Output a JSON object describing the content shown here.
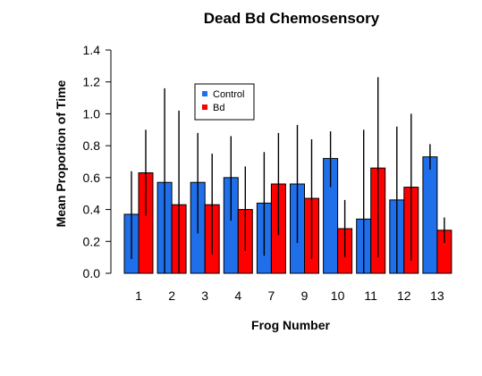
{
  "chart_data": {
    "type": "bar",
    "title": "Dead Bd Chemosensory",
    "xlabel": "Frog Number",
    "ylabel": "Mean Proportion of Time",
    "ylim": [
      0,
      1.4
    ],
    "yticks": [
      "0.0",
      "0.2",
      "0.4",
      "0.6",
      "0.8",
      "1.0",
      "1.2",
      "1.4"
    ],
    "grid": false,
    "legend_position": "top-left",
    "categories": [
      "1",
      "2",
      "3",
      "4",
      "7",
      "9",
      "10",
      "11",
      "12",
      "13"
    ],
    "series": [
      {
        "name": "Control",
        "color": "#1f6fea",
        "values": [
          0.37,
          0.57,
          0.57,
          0.6,
          0.44,
          0.56,
          0.72,
          0.34,
          0.46,
          0.73
        ],
        "error_low": [
          0.09,
          0.0,
          0.25,
          0.33,
          0.11,
          0.19,
          0.54,
          0.0,
          0.0,
          0.65
        ],
        "error_high": [
          0.64,
          1.16,
          0.88,
          0.86,
          0.76,
          0.93,
          0.89,
          0.9,
          0.92,
          0.81
        ]
      },
      {
        "name": "Bd",
        "color": "#ff0000",
        "values": [
          0.63,
          0.43,
          0.43,
          0.4,
          0.56,
          0.47,
          0.28,
          0.66,
          0.54,
          0.27
        ],
        "error_low": [
          0.36,
          0.0,
          0.12,
          0.14,
          0.24,
          0.09,
          0.1,
          0.1,
          0.08,
          0.19
        ],
        "error_high": [
          0.9,
          1.02,
          0.75,
          0.67,
          0.88,
          0.84,
          0.46,
          1.23,
          1.0,
          0.35
        ]
      }
    ]
  }
}
